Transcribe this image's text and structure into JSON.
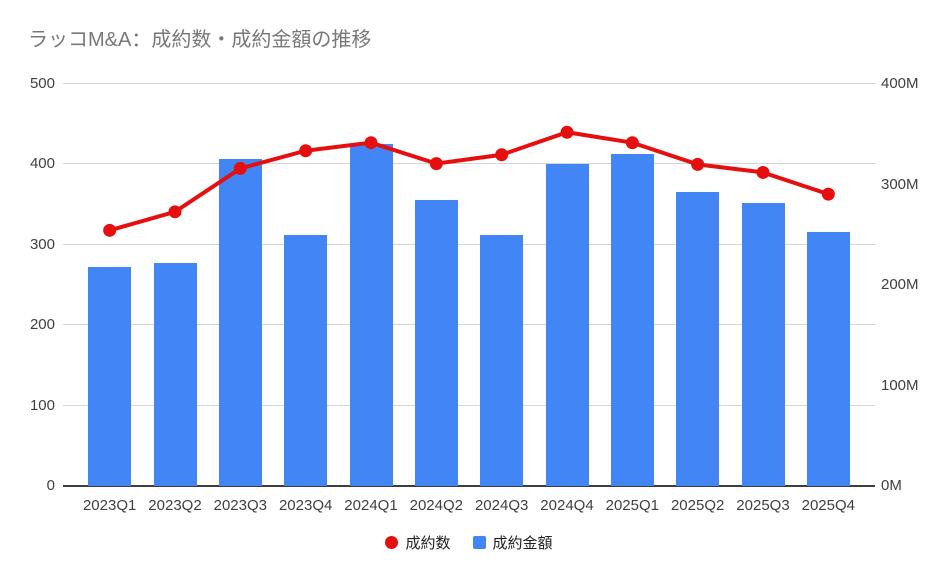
{
  "chart_data": {
    "type": "combo",
    "title": "ラッコM&A：成約数・成約金額の推移",
    "categories": [
      "2023Q1",
      "2023Q2",
      "2023Q3",
      "2023Q4",
      "2024Q1",
      "2024Q2",
      "2024Q3",
      "2024Q4",
      "2025Q1",
      "2025Q2",
      "2025Q3",
      "2025Q4"
    ],
    "series": [
      {
        "name": "成約数",
        "type": "line",
        "axis": "left",
        "color": "#e60f0f",
        "values": [
          318,
          341,
          395,
          417,
          427,
          401,
          412,
          440,
          427,
          400,
          390,
          363
        ]
      },
      {
        "name": "成約金額",
        "type": "bar",
        "axis": "right",
        "color": "#4285f4",
        "values": [
          218,
          222,
          325,
          250,
          340,
          285,
          250,
          320,
          330,
          293,
          282,
          253
        ]
      }
    ],
    "left_axis": {
      "min": 0,
      "max": 500,
      "tick_values": [
        0,
        100,
        200,
        300,
        400,
        500
      ],
      "tick_labels": [
        "0",
        "100",
        "200",
        "300",
        "400",
        "500"
      ]
    },
    "right_axis": {
      "min": 0,
      "max": 400,
      "tick_values": [
        0,
        100,
        200,
        300,
        400
      ],
      "tick_labels": [
        "0M",
        "100M",
        "200M",
        "300M",
        "400M"
      ]
    },
    "grid": true,
    "legend_position": "bottom",
    "background_color": "#ffffff",
    "gridline_color": "#d6d6d6",
    "axis_line_color": "#3d3d3d",
    "title_color": "#787878"
  }
}
